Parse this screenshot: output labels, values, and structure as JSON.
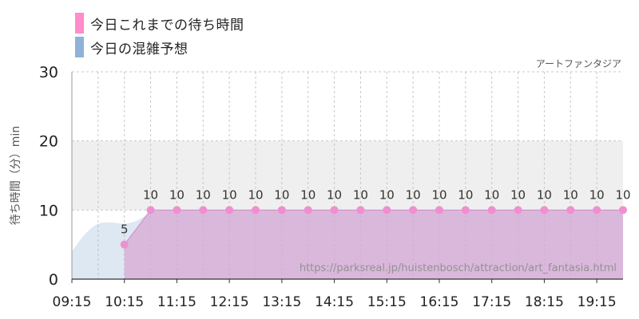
{
  "legend": {
    "actual": {
      "label": "今日これまでの待ち時間",
      "color": "#ff8ccb"
    },
    "forecast": {
      "label": "今日の混雑予想",
      "color": "#8eb3d6"
    }
  },
  "attraction_name": "アートファンタジア",
  "watermark": "https://parksreal.jp/huistenbosch/attraction/art_fantasia.html",
  "chart_data": {
    "type": "area",
    "ylabel": "待ち時間（分）min",
    "xlabel": "",
    "ylim": [
      0,
      30
    ],
    "yticks": [
      0,
      10,
      20,
      30
    ],
    "xticks": [
      "09:15",
      "10:15",
      "11:15",
      "12:15",
      "13:15",
      "14:15",
      "15:15",
      "16:15",
      "17:15",
      "18:15",
      "19:15"
    ],
    "x_range": [
      "09:15",
      "19:45"
    ],
    "grid": true,
    "shaded_band": [
      10,
      20
    ],
    "series": [
      {
        "name": "今日の混雑予想",
        "style": "area",
        "x": [
          "09:15",
          "09:30",
          "09:45",
          "10:00",
          "10:15",
          "10:30",
          "10:45",
          "11:00",
          "11:15",
          "19:45"
        ],
        "y": [
          4,
          6.5,
          8,
          8.2,
          8,
          8.5,
          9.6,
          10,
          10,
          10
        ]
      },
      {
        "name": "今日これまでの待ち時間",
        "style": "area-points",
        "x": [
          "10:15",
          "10:45",
          "11:15",
          "11:45",
          "12:15",
          "12:45",
          "13:15",
          "13:45",
          "14:15",
          "14:45",
          "15:15",
          "15:45",
          "16:15",
          "16:45",
          "17:15",
          "17:45",
          "18:15",
          "18:45",
          "19:15",
          "19:45"
        ],
        "y": [
          5,
          10,
          10,
          10,
          10,
          10,
          10,
          10,
          10,
          10,
          10,
          10,
          10,
          10,
          10,
          10,
          10,
          10,
          10,
          10
        ]
      }
    ]
  }
}
